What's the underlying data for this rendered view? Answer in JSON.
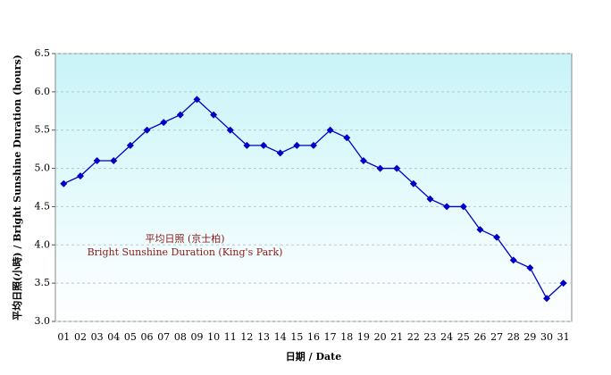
{
  "chart_data": {
    "type": "line",
    "x_label": "日期 / Date",
    "y_label": "平均日照(小時) / Bright Sunshine Duration (hours)",
    "annotation": [
      "平均日照 (京士柏)",
      "Bright Sunshine Duration (King's Park)"
    ],
    "categories": [
      "01",
      "02",
      "03",
      "04",
      "05",
      "06",
      "07",
      "08",
      "09",
      "10",
      "11",
      "12",
      "13",
      "14",
      "15",
      "16",
      "17",
      "18",
      "19",
      "20",
      "21",
      "22",
      "23",
      "24",
      "25",
      "26",
      "27",
      "28",
      "29",
      "30",
      "31"
    ],
    "series": [
      {
        "color": "#0000c8",
        "values": [
          4.8,
          4.9,
          5.1,
          5.1,
          5.3,
          5.5,
          5.6,
          5.7,
          5.9,
          5.7,
          5.5,
          5.3,
          5.3,
          5.2,
          5.3,
          5.3,
          5.5,
          5.4,
          5.1,
          5.0,
          5.0,
          4.8,
          4.6,
          4.5,
          4.5,
          4.2,
          4.1,
          3.8,
          3.7,
          3.3,
          3.5
        ]
      }
    ],
    "ylim": [
      3,
      6.5
    ],
    "yticks": [
      {
        "value": 3,
        "label": "3.0"
      },
      3.5,
      {
        "value": 4,
        "label": "4.0"
      },
      4.5,
      {
        "value": 5,
        "label": "5.0"
      },
      5.5,
      {
        "value": 6,
        "label": "6.0"
      },
      6.5
    ],
    "grid": true
  }
}
